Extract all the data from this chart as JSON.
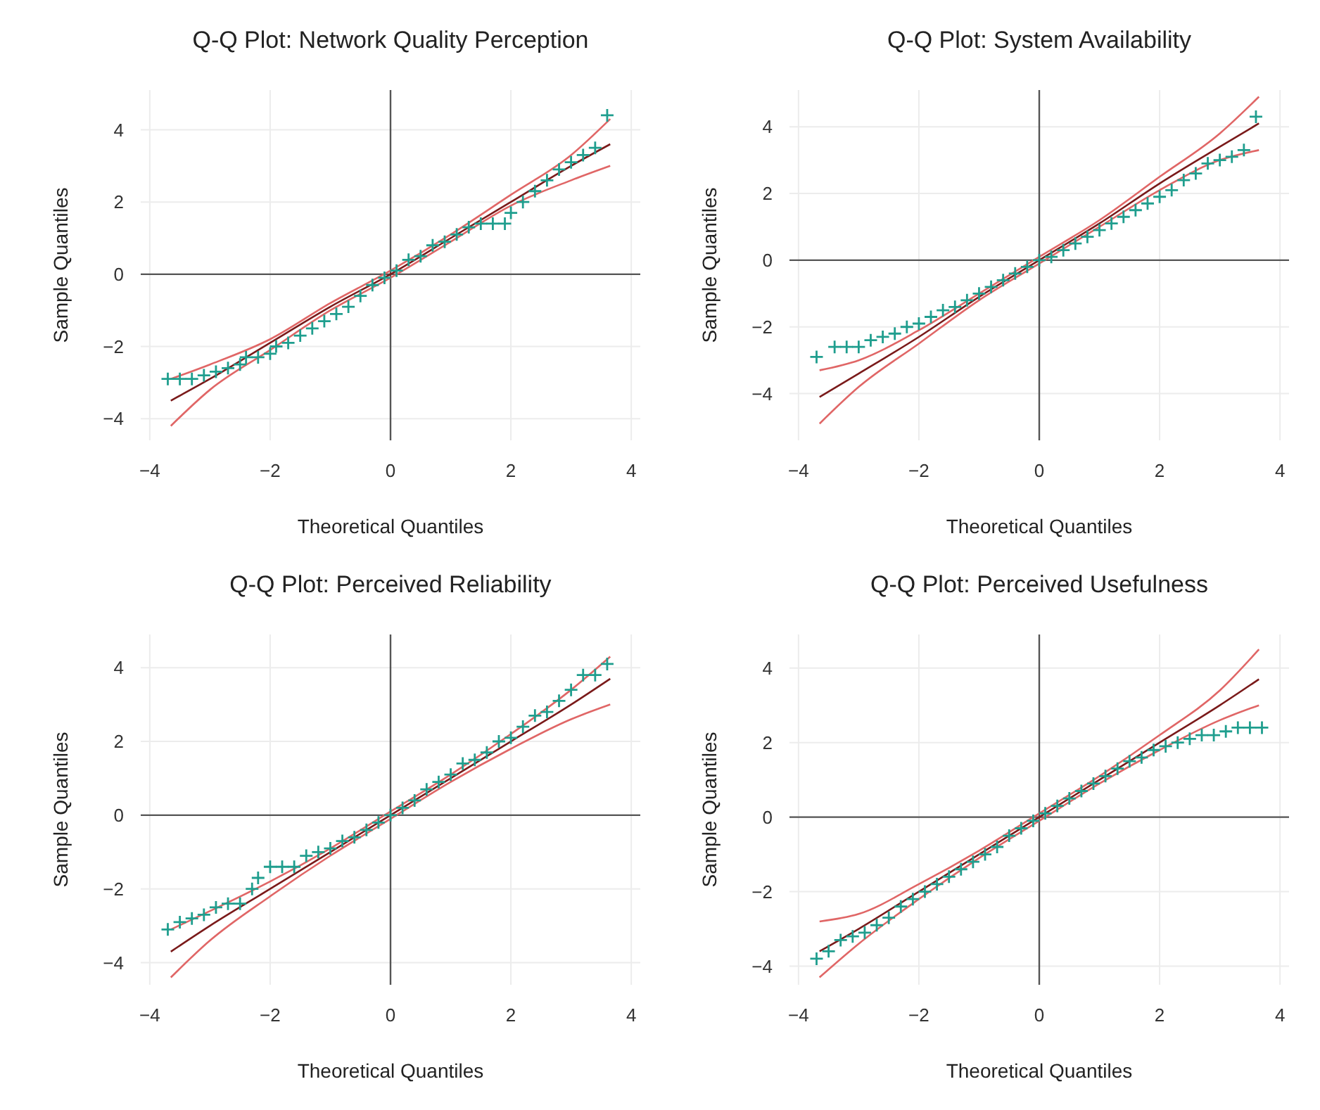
{
  "chart_data": [
    {
      "type": "scatter",
      "title": "Q-Q Plot: Network Quality Perception",
      "xlabel": "Theoretical Quantiles",
      "ylabel": "Sample Quantiles",
      "xlim": [
        -4.15,
        4.15
      ],
      "ylim": [
        -4.6,
        5.1
      ],
      "xticks": [
        -4,
        -2,
        0,
        2,
        4
      ],
      "yticks": [
        -4,
        -2,
        0,
        2,
        4
      ],
      "grid": true,
      "marker": "cross",
      "series": [
        {
          "type": "scatter",
          "color": "#1f9e8e",
          "x": [
            -3.7,
            -3.5,
            -3.3,
            -3.1,
            -2.9,
            -2.7,
            -2.5,
            -2.4,
            -2.2,
            -2.0,
            -1.9,
            -1.7,
            -1.5,
            -1.3,
            -1.1,
            -0.9,
            -0.7,
            -0.5,
            -0.3,
            -0.1,
            0.1,
            0.3,
            0.5,
            0.7,
            0.9,
            1.1,
            1.3,
            1.5,
            1.7,
            1.9,
            2.0,
            2.2,
            2.4,
            2.6,
            2.8,
            3.0,
            3.2,
            3.4,
            3.6
          ],
          "values": [
            -2.9,
            -2.9,
            -2.9,
            -2.8,
            -2.7,
            -2.6,
            -2.5,
            -2.3,
            -2.3,
            -2.2,
            -2.0,
            -1.9,
            -1.7,
            -1.5,
            -1.3,
            -1.1,
            -0.9,
            -0.6,
            -0.3,
            -0.1,
            0.1,
            0.4,
            0.5,
            0.8,
            0.9,
            1.1,
            1.3,
            1.4,
            1.4,
            1.4,
            1.7,
            2.0,
            2.3,
            2.6,
            2.9,
            3.1,
            3.3,
            3.5,
            4.4
          ]
        },
        {
          "type": "line",
          "color": "#e06666",
          "marker": "none",
          "x": [
            -3.65,
            -3,
            -2,
            -1,
            0,
            1,
            2,
            3,
            3.65
          ],
          "values": [
            -4.2,
            -3.2,
            -2.1,
            -1,
            -0.1,
            0.9,
            1.9,
            2.6,
            3
          ]
        },
        {
          "type": "line",
          "color": "#e06666",
          "marker": "none",
          "x": [
            -3.65,
            -3,
            -2,
            -1,
            0,
            1,
            2,
            3,
            3.65
          ],
          "values": [
            -2.9,
            -2.5,
            -1.8,
            -0.8,
            0.1,
            1.1,
            2.2,
            3.3,
            4.3
          ]
        },
        {
          "type": "line",
          "color": "#7a1a1a",
          "marker": "none",
          "x": [
            -3.65,
            -3,
            -2,
            -1,
            0,
            1,
            2,
            3,
            3.65
          ],
          "values": [
            -3.5,
            -2.9,
            -1.9,
            -0.9,
            0,
            1,
            2,
            3,
            3.6
          ]
        }
      ]
    },
    {
      "type": "scatter",
      "title": "Q-Q Plot: System Availability",
      "xlabel": "Theoretical Quantiles",
      "ylabel": "Sample Quantiles",
      "xlim": [
        -4.15,
        4.15
      ],
      "ylim": [
        -5.4,
        5.1
      ],
      "xticks": [
        -4,
        -2,
        0,
        2,
        4
      ],
      "yticks": [
        -4,
        -2,
        0,
        2,
        4
      ],
      "grid": true,
      "marker": "cross",
      "series": [
        {
          "type": "scatter",
          "color": "#1f9e8e",
          "x": [
            -3.7,
            -3.4,
            -3.2,
            -3.0,
            -2.8,
            -2.6,
            -2.4,
            -2.2,
            -2.0,
            -1.8,
            -1.6,
            -1.4,
            -1.2,
            -1.0,
            -0.8,
            -0.6,
            -0.4,
            -0.2,
            0,
            0.2,
            0.4,
            0.6,
            0.8,
            1.0,
            1.2,
            1.4,
            1.6,
            1.8,
            2.0,
            2.2,
            2.4,
            2.6,
            2.8,
            3.0,
            3.2,
            3.4,
            3.6
          ],
          "values": [
            -2.9,
            -2.6,
            -2.6,
            -2.6,
            -2.4,
            -2.3,
            -2.2,
            -2.0,
            -1.9,
            -1.7,
            -1.5,
            -1.4,
            -1.2,
            -1.0,
            -0.8,
            -0.6,
            -0.4,
            -0.2,
            0,
            0.1,
            0.3,
            0.5,
            0.7,
            0.9,
            1.1,
            1.3,
            1.5,
            1.7,
            1.9,
            2.1,
            2.4,
            2.6,
            2.9,
            3.0,
            3.1,
            3.3,
            4.3
          ]
        },
        {
          "type": "line",
          "color": "#e06666",
          "marker": "none",
          "x": [
            -3.65,
            -3,
            -2,
            -1,
            0,
            1,
            2,
            3,
            3.65
          ],
          "values": [
            -4.9,
            -3.8,
            -2.5,
            -1.2,
            -0.1,
            1,
            2.1,
            3,
            3.3
          ]
        },
        {
          "type": "line",
          "color": "#e06666",
          "marker": "none",
          "x": [
            -3.65,
            -3,
            -2,
            -1,
            0,
            1,
            2,
            3,
            3.65
          ],
          "values": [
            -3.3,
            -3,
            -2.1,
            -1,
            0.1,
            1.2,
            2.5,
            3.8,
            4.9
          ]
        },
        {
          "type": "line",
          "color": "#7a1a1a",
          "marker": "none",
          "x": [
            -3.65,
            -3,
            -2,
            -1,
            0,
            1,
            2,
            3,
            3.65
          ],
          "values": [
            -4.1,
            -3.4,
            -2.3,
            -1.1,
            0,
            1.1,
            2.3,
            3.4,
            4.1
          ]
        }
      ]
    },
    {
      "type": "scatter",
      "title": "Q-Q Plot: Perceived Reliability",
      "xlabel": "Theoretical Quantiles",
      "ylabel": "Sample Quantiles",
      "xlim": [
        -4.15,
        4.15
      ],
      "ylim": [
        -4.6,
        4.9
      ],
      "xticks": [
        -4,
        -2,
        0,
        2,
        4
      ],
      "yticks": [
        -4,
        -2,
        0,
        2,
        4
      ],
      "grid": true,
      "marker": "cross",
      "series": [
        {
          "type": "scatter",
          "color": "#1f9e8e",
          "x": [
            -3.7,
            -3.5,
            -3.3,
            -3.1,
            -2.9,
            -2.7,
            -2.5,
            -2.3,
            -2.2,
            -2.0,
            -1.8,
            -1.6,
            -1.4,
            -1.2,
            -1.0,
            -0.8,
            -0.6,
            -0.4,
            -0.2,
            0,
            0.2,
            0.4,
            0.6,
            0.8,
            1.0,
            1.2,
            1.4,
            1.6,
            1.8,
            2.0,
            2.2,
            2.4,
            2.6,
            2.8,
            3.0,
            3.2,
            3.4,
            3.6
          ],
          "values": [
            -3.1,
            -2.9,
            -2.8,
            -2.7,
            -2.5,
            -2.4,
            -2.4,
            -2.0,
            -1.7,
            -1.4,
            -1.4,
            -1.4,
            -1.1,
            -1.0,
            -0.9,
            -0.7,
            -0.6,
            -0.4,
            -0.2,
            0,
            0.2,
            0.4,
            0.7,
            0.9,
            1.1,
            1.4,
            1.5,
            1.7,
            2.0,
            2.1,
            2.4,
            2.7,
            2.8,
            3.1,
            3.4,
            3.8,
            3.8,
            4.1
          ]
        },
        {
          "type": "line",
          "color": "#e06666",
          "marker": "none",
          "x": [
            -3.65,
            -3,
            -2,
            -1,
            0,
            1,
            2,
            3,
            3.65
          ],
          "values": [
            -4.4,
            -3.4,
            -2.2,
            -1.1,
            -0.1,
            0.9,
            1.8,
            2.6,
            3
          ]
        },
        {
          "type": "line",
          "color": "#e06666",
          "marker": "none",
          "x": [
            -3.65,
            -3,
            -2,
            -1,
            0,
            1,
            2,
            3,
            3.65
          ],
          "values": [
            -3.1,
            -2.6,
            -1.8,
            -0.9,
            0.1,
            1.1,
            2.2,
            3.4,
            4.3
          ]
        },
        {
          "type": "line",
          "color": "#7a1a1a",
          "marker": "none",
          "x": [
            -3.65,
            -3,
            -2,
            -1,
            0,
            1,
            2,
            3,
            3.65
          ],
          "values": [
            -3.7,
            -3,
            -2,
            -1,
            0,
            1,
            2,
            3,
            3.7
          ]
        }
      ]
    },
    {
      "type": "scatter",
      "title": "Q-Q Plot: Perceived Usefulness",
      "xlabel": "Theoretical Quantiles",
      "ylabel": "Sample Quantiles",
      "xlim": [
        -4.15,
        4.15
      ],
      "ylim": [
        -4.5,
        4.9
      ],
      "xticks": [
        -4,
        -2,
        0,
        2,
        4
      ],
      "yticks": [
        -4,
        -2,
        0,
        2,
        4
      ],
      "grid": true,
      "marker": "cross",
      "series": [
        {
          "type": "scatter",
          "color": "#1f9e8e",
          "x": [
            -3.7,
            -3.5,
            -3.3,
            -3.1,
            -2.9,
            -2.7,
            -2.5,
            -2.3,
            -2.1,
            -1.9,
            -1.7,
            -1.5,
            -1.3,
            -1.1,
            -0.9,
            -0.7,
            -0.5,
            -0.3,
            -0.1,
            0.1,
            0.3,
            0.5,
            0.7,
            0.9,
            1.1,
            1.3,
            1.5,
            1.7,
            1.9,
            2.1,
            2.3,
            2.5,
            2.7,
            2.9,
            3.1,
            3.3,
            3.5,
            3.7
          ],
          "values": [
            -3.8,
            -3.6,
            -3.3,
            -3.2,
            -3.1,
            -2.9,
            -2.7,
            -2.4,
            -2.2,
            -2.0,
            -1.8,
            -1.6,
            -1.4,
            -1.2,
            -1.0,
            -0.8,
            -0.5,
            -0.3,
            -0.1,
            0.1,
            0.3,
            0.5,
            0.7,
            0.9,
            1.1,
            1.3,
            1.5,
            1.6,
            1.8,
            1.9,
            2.0,
            2.1,
            2.2,
            2.2,
            2.3,
            2.4,
            2.4,
            2.4
          ]
        },
        {
          "type": "line",
          "color": "#e06666",
          "marker": "none",
          "x": [
            -3.65,
            -3,
            -2,
            -1,
            0,
            1,
            2,
            3,
            3.65
          ],
          "values": [
            -4.3,
            -3.4,
            -2.2,
            -1.1,
            -0.1,
            0.9,
            1.8,
            2.6,
            3
          ]
        },
        {
          "type": "line",
          "color": "#e06666",
          "marker": "none",
          "x": [
            -3.65,
            -3,
            -2,
            -1,
            0,
            1,
            2,
            3,
            3.65
          ],
          "values": [
            -2.8,
            -2.6,
            -1.8,
            -0.9,
            0.1,
            1.1,
            2.2,
            3.4,
            4.5
          ]
        },
        {
          "type": "line",
          "color": "#7a1a1a",
          "marker": "none",
          "x": [
            -3.65,
            -3,
            -2,
            -1,
            0,
            1,
            2,
            3,
            3.65
          ],
          "values": [
            -3.6,
            -3,
            -2,
            -1,
            0,
            1,
            2,
            3,
            3.7
          ]
        }
      ]
    }
  ]
}
